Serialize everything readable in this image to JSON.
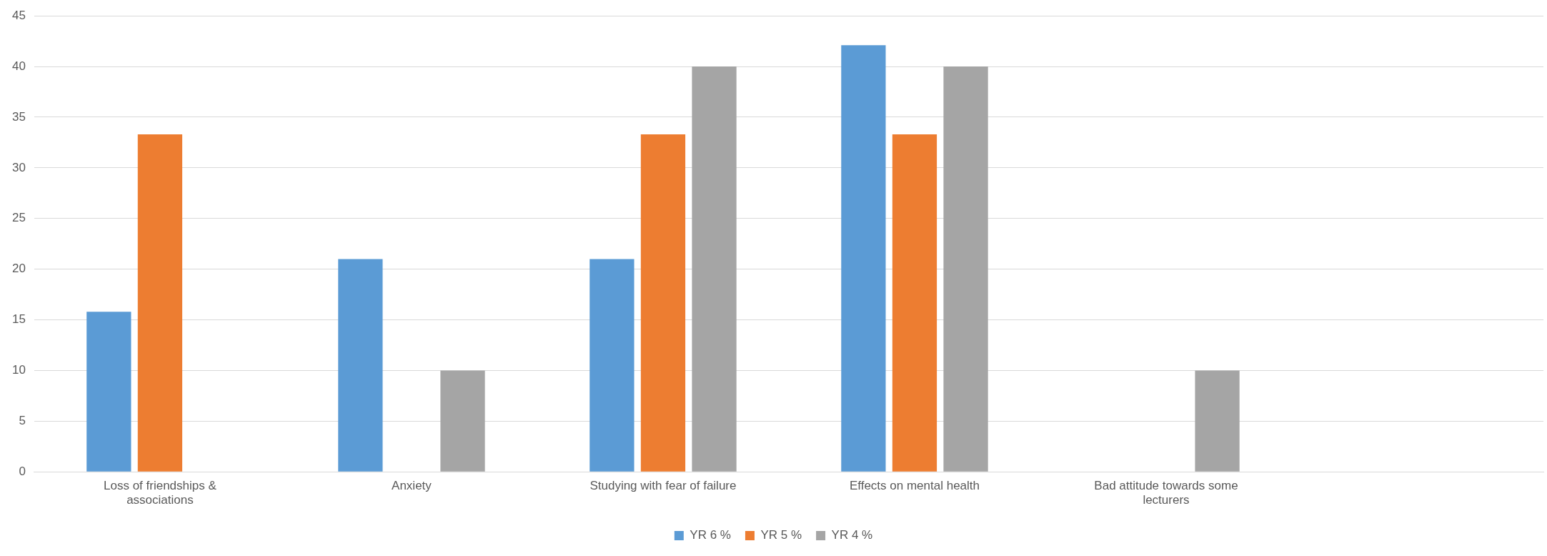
{
  "chart_data": {
    "type": "bar",
    "categories": [
      "Loss of friendships & associations",
      "Anxiety",
      "Studying with fear of failure",
      "Effects on mental health",
      "Bad attitude towards some lecturers",
      null
    ],
    "series": [
      {
        "name": "YR 6 %",
        "color": "#5b9bd5",
        "values": [
          15.8,
          21,
          21,
          42.1,
          null,
          null
        ]
      },
      {
        "name": "YR 5 %",
        "color": "#ed7d31",
        "values": [
          33.3,
          null,
          33.3,
          33.3,
          null,
          null
        ]
      },
      {
        "name": "YR 4 %",
        "color": "#a5a5a5",
        "values": [
          null,
          10,
          40,
          40,
          10,
          null
        ]
      }
    ],
    "ylim": [
      0,
      45
    ],
    "yticks": [
      0,
      5,
      10,
      15,
      20,
      25,
      30,
      35,
      40,
      45
    ],
    "grid": "y",
    "legend": "bottom"
  }
}
